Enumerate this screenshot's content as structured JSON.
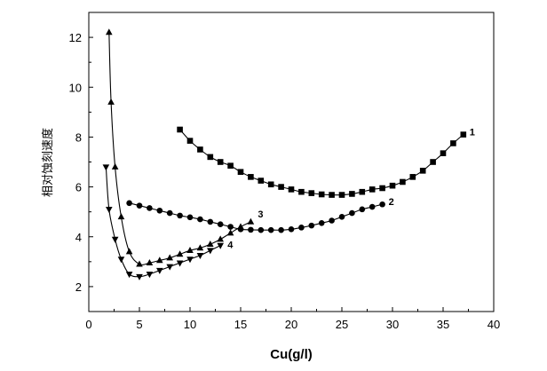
{
  "chart_data": {
    "type": "line",
    "title": "",
    "xlabel": "Cu(g/l)",
    "ylabel": "相对蚀刻速度",
    "xlim": [
      0,
      40
    ],
    "ylim": [
      1,
      13
    ],
    "xticks": [
      0,
      5,
      10,
      15,
      20,
      25,
      30,
      35,
      40
    ],
    "yticks": [
      2,
      4,
      6,
      8,
      10,
      12
    ],
    "grid": false,
    "legend": "none",
    "series": [
      {
        "name": "1",
        "marker": "square",
        "x": [
          9,
          10,
          11,
          12,
          13,
          14,
          15,
          16,
          17,
          18,
          19,
          20,
          21,
          22,
          23,
          24,
          25,
          26,
          27,
          28,
          29,
          30,
          31,
          32,
          33,
          34,
          35,
          36,
          37
        ],
        "y": [
          8.3,
          7.85,
          7.5,
          7.2,
          7.0,
          6.85,
          6.6,
          6.4,
          6.25,
          6.1,
          6.0,
          5.9,
          5.8,
          5.75,
          5.7,
          5.68,
          5.68,
          5.72,
          5.8,
          5.9,
          5.95,
          6.05,
          6.2,
          6.4,
          6.65,
          7.0,
          7.35,
          7.75,
          8.1
        ]
      },
      {
        "name": "2",
        "marker": "circle",
        "x": [
          4,
          5,
          6,
          7,
          8,
          9,
          10,
          11,
          12,
          13,
          14,
          15,
          16,
          17,
          18,
          19,
          20,
          21,
          22,
          23,
          24,
          25,
          26,
          27,
          28,
          29
        ],
        "y": [
          5.35,
          5.25,
          5.15,
          5.05,
          4.95,
          4.85,
          4.78,
          4.7,
          4.6,
          4.5,
          4.4,
          4.3,
          4.28,
          4.27,
          4.27,
          4.27,
          4.3,
          4.37,
          4.45,
          4.55,
          4.65,
          4.8,
          4.95,
          5.1,
          5.2,
          5.3
        ]
      },
      {
        "name": "3",
        "marker": "triangle-up",
        "x": [
          2,
          2.2,
          2.6,
          3.2,
          4,
          5,
          6,
          7,
          8,
          9,
          10,
          11,
          12,
          13,
          14,
          15,
          16
        ],
        "y": [
          12.2,
          9.4,
          6.8,
          4.8,
          3.4,
          2.9,
          2.95,
          3.05,
          3.15,
          3.3,
          3.45,
          3.55,
          3.7,
          3.9,
          4.15,
          4.4,
          4.6
        ]
      },
      {
        "name": "4",
        "marker": "triangle-down",
        "x": [
          1.7,
          2,
          2.6,
          3.2,
          4,
          5,
          6,
          7,
          8,
          9,
          10,
          11,
          12,
          13
        ],
        "y": [
          6.8,
          5.1,
          3.9,
          3.1,
          2.5,
          2.4,
          2.5,
          2.65,
          2.8,
          2.95,
          3.1,
          3.25,
          3.45,
          3.65
        ]
      }
    ]
  }
}
